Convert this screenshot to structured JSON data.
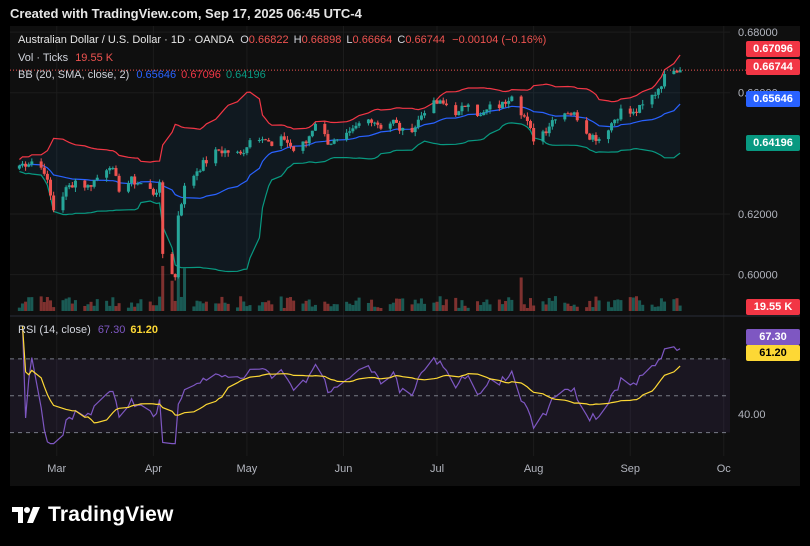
{
  "header": {
    "text": "Created with TradingView.com, Sep 17, 2025 06:45 UTC-4"
  },
  "legend": {
    "symbol": "Australian Dollar / U.S. Dollar · 1D · OANDA",
    "o_label": "O",
    "o": "0.66822",
    "h_label": "H",
    "h": "0.66898",
    "l_label": "L",
    "l": "0.66664",
    "c_label": "C",
    "c": "0.66744",
    "change": "−0.00104 (−0.16%)",
    "vol_label": "Vol · Ticks",
    "vol": "19.55 K",
    "bb_label": "BB (20, SMA, close, 2)",
    "bb_basis": "0.65646",
    "bb_upper": "0.67096",
    "bb_lower": "0.64196",
    "rsi_label": "RSI (14, close)",
    "rsi": "67.30",
    "rsi_ma": "61.20"
  },
  "price_labels": {
    "upper": "0.67096",
    "last": "0.66744",
    "basis": "0.65646",
    "lower": "0.64196",
    "volume": "19.55 K",
    "rsi": "67.30",
    "rsi_ma": "61.20"
  },
  "colors": {
    "up": "#26a69a",
    "down": "#ef5350",
    "bb_basis": "#2962ff",
    "bb_upper": "#f23645",
    "bb_lower": "#089981",
    "rsi": "#7e57c2",
    "rsi_ma": "#fdd835",
    "background": "#0f0f0f"
  },
  "logo": {
    "text": "TradingView"
  },
  "chart_data": {
    "type": "candlestick",
    "symbol": "AUDUSD",
    "x_tick_labels": [
      "Mar",
      "Apr",
      "May",
      "Jun",
      "Jul",
      "Aug",
      "Sep",
      "Oc"
    ],
    "x_range": [
      "2025-02-14",
      "2025-10-03"
    ],
    "y_ticks": [
      "0.68000",
      "0.66000",
      "0.62000",
      "0.60000"
    ],
    "y_range": [
      0.588,
      0.682
    ],
    "last_close": 0.66744,
    "bb": {
      "basis": 0.65646,
      "upper": 0.67096,
      "lower": 0.64196
    },
    "volume_last": "19.55 K",
    "rsi": {
      "value": 67.3,
      "ma": 61.2,
      "range": [
        20,
        90
      ],
      "bands": [
        70,
        50,
        30
      ],
      "tick_labels": [
        "40.00"
      ]
    },
    "close_series": [
      {
        "date": "2025-02-17",
        "c": 0.636
      },
      {
        "date": "2025-02-21",
        "c": 0.6375
      },
      {
        "date": "2025-02-25",
        "c": 0.6345
      },
      {
        "date": "2025-02-28",
        "c": 0.6215
      },
      {
        "date": "2025-03-04",
        "c": 0.628
      },
      {
        "date": "2025-03-07",
        "c": 0.631
      },
      {
        "date": "2025-03-11",
        "c": 0.629
      },
      {
        "date": "2025-03-14",
        "c": 0.632
      },
      {
        "date": "2025-03-18",
        "c": 0.6365
      },
      {
        "date": "2025-03-21",
        "c": 0.6285
      },
      {
        "date": "2025-03-25",
        "c": 0.631
      },
      {
        "date": "2025-03-28",
        "c": 0.63
      },
      {
        "date": "2025-04-01",
        "c": 0.627
      },
      {
        "date": "2025-04-03",
        "c": 0.629
      },
      {
        "date": "2025-04-04",
        "c": 0.607
      },
      {
        "date": "2025-04-08",
        "c": 0.599
      },
      {
        "date": "2025-04-09",
        "c": 0.62
      },
      {
        "date": "2025-04-11",
        "c": 0.6285
      },
      {
        "date": "2025-04-15",
        "c": 0.6345
      },
      {
        "date": "2025-04-18",
        "c": 0.6375
      },
      {
        "date": "2025-04-22",
        "c": 0.641
      },
      {
        "date": "2025-04-25",
        "c": 0.6405
      },
      {
        "date": "2025-04-29",
        "c": 0.6395
      },
      {
        "date": "2025-05-02",
        "c": 0.6445
      },
      {
        "date": "2025-05-06",
        "c": 0.646
      },
      {
        "date": "2025-05-09",
        "c": 0.642
      },
      {
        "date": "2025-05-13",
        "c": 0.645
      },
      {
        "date": "2025-05-16",
        "c": 0.641
      },
      {
        "date": "2025-05-20",
        "c": 0.6435
      },
      {
        "date": "2025-05-23",
        "c": 0.6505
      },
      {
        "date": "2025-05-27",
        "c": 0.644
      },
      {
        "date": "2025-05-30",
        "c": 0.6435
      },
      {
        "date": "2025-06-03",
        "c": 0.646
      },
      {
        "date": "2025-06-06",
        "c": 0.6495
      },
      {
        "date": "2025-06-10",
        "c": 0.6515
      },
      {
        "date": "2025-06-13",
        "c": 0.649
      },
      {
        "date": "2025-06-17",
        "c": 0.6505
      },
      {
        "date": "2025-06-20",
        "c": 0.647
      },
      {
        "date": "2025-06-24",
        "c": 0.649
      },
      {
        "date": "2025-06-27",
        "c": 0.6545
      },
      {
        "date": "2025-07-01",
        "c": 0.6565
      },
      {
        "date": "2025-07-04",
        "c": 0.656
      },
      {
        "date": "2025-07-08",
        "c": 0.653
      },
      {
        "date": "2025-07-11",
        "c": 0.6575
      },
      {
        "date": "2025-07-15",
        "c": 0.652
      },
      {
        "date": "2025-07-18",
        "c": 0.655
      },
      {
        "date": "2025-07-22",
        "c": 0.656
      },
      {
        "date": "2025-07-25",
        "c": 0.66
      },
      {
        "date": "2025-07-29",
        "c": 0.652
      },
      {
        "date": "2025-08-01",
        "c": 0.645
      },
      {
        "date": "2025-08-05",
        "c": 0.648
      },
      {
        "date": "2025-08-08",
        "c": 0.6525
      },
      {
        "date": "2025-08-12",
        "c": 0.654
      },
      {
        "date": "2025-08-15",
        "c": 0.652
      },
      {
        "date": "2025-08-19",
        "c": 0.646
      },
      {
        "date": "2025-08-22",
        "c": 0.645
      },
      {
        "date": "2025-08-26",
        "c": 0.65
      },
      {
        "date": "2025-08-29",
        "c": 0.654
      },
      {
        "date": "2025-09-02",
        "c": 0.653
      },
      {
        "date": "2025-09-05",
        "c": 0.6555
      },
      {
        "date": "2025-09-09",
        "c": 0.66
      },
      {
        "date": "2025-09-12",
        "c": 0.665
      },
      {
        "date": "2025-09-15",
        "c": 0.6685
      },
      {
        "date": "2025-09-17",
        "c": 0.66744
      }
    ]
  }
}
